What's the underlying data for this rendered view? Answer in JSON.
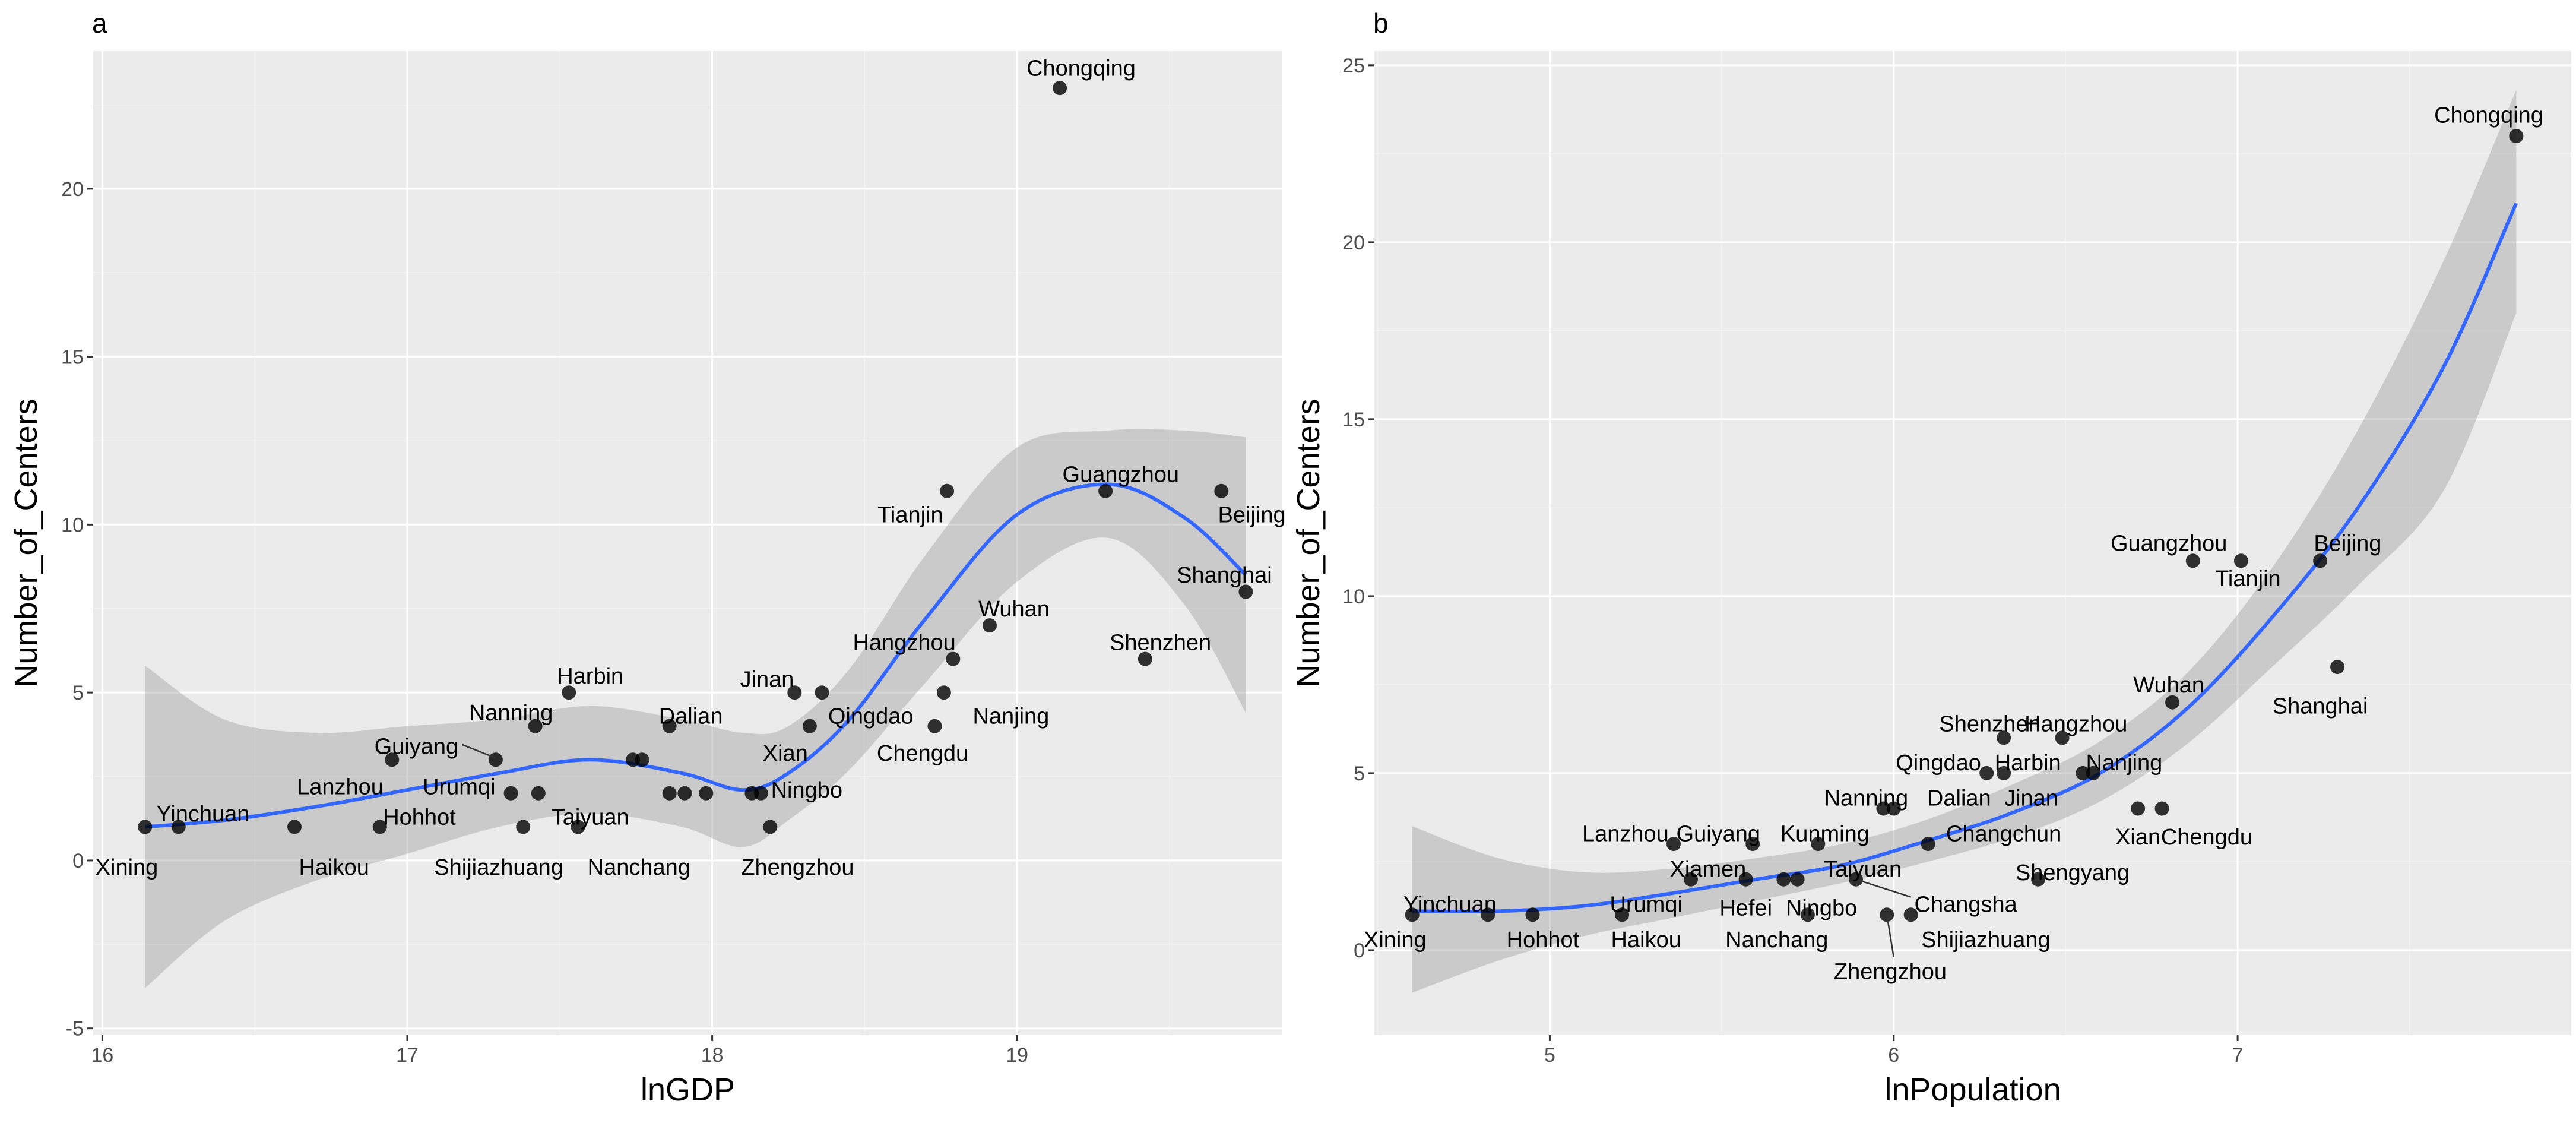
{
  "chart_data": [
    {
      "panel": "a",
      "type": "scatter",
      "xlabel": "lnGDP",
      "ylabel": "Number_of_Centers",
      "xlim": [
        15.97,
        19.87
      ],
      "ylim": [
        -5.2,
        24.1
      ],
      "xticks": [
        16,
        17,
        18,
        19
      ],
      "yticks": [
        -5,
        0,
        5,
        10,
        15,
        20
      ],
      "xticklabels": [
        "16",
        "17",
        "18",
        "19"
      ],
      "yticklabels": [
        "-5",
        "0",
        "5",
        "10",
        "15",
        "20"
      ],
      "grid": true,
      "smooth": {
        "color": "#3366FF",
        "band_color": "#999999",
        "x": [
          16.14,
          16.4,
          16.7,
          17.0,
          17.3,
          17.6,
          17.9,
          18.1,
          18.25,
          18.45,
          18.7,
          19.0,
          19.3,
          19.55,
          19.75
        ],
        "y": [
          1.0,
          1.2,
          1.6,
          2.1,
          2.6,
          3.0,
          2.6,
          2.1,
          2.6,
          4.2,
          7.2,
          10.3,
          11.2,
          10.2,
          8.5
        ],
        "ymin": [
          -3.8,
          -1.8,
          -0.6,
          0.2,
          1.0,
          1.4,
          1.0,
          0.4,
          1.2,
          2.7,
          5.3,
          8.3,
          9.6,
          7.6,
          4.4
        ],
        "ymax": [
          5.8,
          4.2,
          3.8,
          4.0,
          4.2,
          4.6,
          4.2,
          3.8,
          4.0,
          5.7,
          9.1,
          12.3,
          12.8,
          12.8,
          12.6
        ]
      },
      "points": [
        {
          "x": 16.14,
          "y": 1
        },
        {
          "x": 16.25,
          "y": 1
        },
        {
          "x": 16.63,
          "y": 1
        },
        {
          "x": 16.91,
          "y": 1
        },
        {
          "x": 16.95,
          "y": 3
        },
        {
          "x": 17.29,
          "y": 3
        },
        {
          "x": 17.34,
          "y": 2
        },
        {
          "x": 17.38,
          "y": 1
        },
        {
          "x": 17.42,
          "y": 4
        },
        {
          "x": 17.43,
          "y": 2
        },
        {
          "x": 17.53,
          "y": 5
        },
        {
          "x": 17.56,
          "y": 1
        },
        {
          "x": 17.74,
          "y": 3
        },
        {
          "x": 17.77,
          "y": 3
        },
        {
          "x": 17.86,
          "y": 4
        },
        {
          "x": 17.86,
          "y": 2
        },
        {
          "x": 17.91,
          "y": 2
        },
        {
          "x": 17.98,
          "y": 2
        },
        {
          "x": 18.13,
          "y": 2
        },
        {
          "x": 18.16,
          "y": 2
        },
        {
          "x": 18.19,
          "y": 1
        },
        {
          "x": 18.27,
          "y": 5
        },
        {
          "x": 18.32,
          "y": 4
        },
        {
          "x": 18.36,
          "y": 5
        },
        {
          "x": 18.73,
          "y": 4
        },
        {
          "x": 18.76,
          "y": 5
        },
        {
          "x": 18.77,
          "y": 11
        },
        {
          "x": 18.79,
          "y": 6
        },
        {
          "x": 18.91,
          "y": 7
        },
        {
          "x": 19.14,
          "y": 23
        },
        {
          "x": 19.29,
          "y": 11
        },
        {
          "x": 19.42,
          "y": 6
        },
        {
          "x": 19.67,
          "y": 11
        },
        {
          "x": 19.75,
          "y": 8
        }
      ],
      "labels": [
        {
          "text": "Chongqing",
          "x": 19.21,
          "y": 23.6,
          "anchor": "middle",
          "color": "#000000"
        },
        {
          "text": "Tianjin",
          "x": 18.65,
          "y": 10.3,
          "anchor": "middle",
          "color": "#000000"
        },
        {
          "text": "Guangzhou",
          "x": 19.34,
          "y": 11.5,
          "anchor": "middle",
          "color": "#333333"
        },
        {
          "text": "Beijing",
          "x": 19.77,
          "y": 10.3,
          "anchor": "middle",
          "color": "#333333"
        },
        {
          "text": "Shanghai",
          "x": 19.68,
          "y": 8.5,
          "anchor": "middle",
          "color": "#333333"
        },
        {
          "text": "Shenzhen",
          "x": 19.47,
          "y": 6.5,
          "anchor": "middle",
          "color": "#000000"
        },
        {
          "text": "Wuhan",
          "x": 18.99,
          "y": 7.5,
          "anchor": "middle",
          "color": "#333333"
        },
        {
          "text": "Hangzhou",
          "x": 18.63,
          "y": 6.5,
          "anchor": "middle",
          "color": "#333333"
        },
        {
          "text": "Jinan",
          "x": 18.18,
          "y": 5.4,
          "anchor": "middle",
          "color": "#000000"
        },
        {
          "text": "Qingdao",
          "x": 18.52,
          "y": 4.3,
          "anchor": "middle",
          "color": "#333333"
        },
        {
          "text": "Nanjing",
          "x": 18.98,
          "y": 4.3,
          "anchor": "middle",
          "color": "#000000"
        },
        {
          "text": "Chengdu",
          "x": 18.69,
          "y": 3.2,
          "anchor": "middle",
          "color": "#000000"
        },
        {
          "text": "Xian",
          "x": 18.24,
          "y": 3.2,
          "anchor": "middle",
          "color": "#333333"
        },
        {
          "text": "Ningbo",
          "x": 18.31,
          "y": 2.1,
          "anchor": "middle",
          "color": "#333333"
        },
        {
          "text": "Zhengzhou",
          "x": 18.28,
          "y": -0.2,
          "anchor": "middle",
          "color": "#000000"
        },
        {
          "text": "Dalian",
          "x": 17.93,
          "y": 4.3,
          "anchor": "middle",
          "color": "#333333"
        },
        {
          "text": "Harbin",
          "x": 17.6,
          "y": 5.5,
          "anchor": "middle",
          "color": "#000000"
        },
        {
          "text": "Nanning",
          "x": 17.34,
          "y": 4.4,
          "anchor": "middle",
          "color": "#333333"
        },
        {
          "text": "Guiyang",
          "x": 17.03,
          "y": 3.4,
          "anchor": "middle",
          "color": "#333333"
        },
        {
          "text": "Lanzhou",
          "x": 16.78,
          "y": 2.2,
          "anchor": "middle",
          "color": "#333333"
        },
        {
          "text": "Urumqi",
          "x": 17.17,
          "y": 2.2,
          "anchor": "middle",
          "color": "#333333"
        },
        {
          "text": "Hohhot",
          "x": 17.04,
          "y": 1.3,
          "anchor": "middle",
          "color": "#333333"
        },
        {
          "text": "Taiyuan",
          "x": 17.6,
          "y": 1.3,
          "anchor": "middle",
          "color": "#333333"
        },
        {
          "text": "Shijiazhuang",
          "x": 17.3,
          "y": -0.2,
          "anchor": "middle",
          "color": "#000000"
        },
        {
          "text": "Nanchang",
          "x": 17.76,
          "y": -0.2,
          "anchor": "middle",
          "color": "#000000"
        },
        {
          "text": "Yinchuan",
          "x": 16.33,
          "y": 1.4,
          "anchor": "middle",
          "color": "#333333"
        },
        {
          "text": "Haikou",
          "x": 16.76,
          "y": -0.2,
          "anchor": "middle",
          "color": "#000000"
        },
        {
          "text": "Xining",
          "x": 16.08,
          "y": -0.2,
          "anchor": "middle",
          "color": "#000000"
        }
      ],
      "connectors": [
        {
          "x1": 17.18,
          "y1": 3.45,
          "x2": 17.29,
          "y2": 3.05
        }
      ]
    },
    {
      "panel": "b",
      "type": "scatter",
      "xlabel": "lnPopulation",
      "ylabel": "Number_of_Centers",
      "xlim": [
        4.49,
        7.97
      ],
      "ylim": [
        -2.4,
        25.4
      ],
      "xticks": [
        5,
        6,
        7
      ],
      "yticks": [
        0,
        5,
        10,
        15,
        20,
        25
      ],
      "xticklabels": [
        "5",
        "6",
        "7"
      ],
      "yticklabels": [
        "0",
        "5",
        "10",
        "15",
        "20",
        "25"
      ],
      "grid": true,
      "smooth": {
        "color": "#3366FF",
        "band_color": "#999999",
        "x": [
          4.6,
          4.85,
          5.1,
          5.35,
          5.6,
          5.85,
          6.1,
          6.35,
          6.6,
          6.85,
          7.1,
          7.35,
          7.6,
          7.81
        ],
        "y": [
          1.1,
          1.1,
          1.25,
          1.6,
          2.0,
          2.4,
          3.1,
          3.9,
          5.0,
          6.8,
          9.4,
          12.5,
          16.5,
          21.1
        ],
        "ymin": [
          -1.2,
          -0.3,
          0.4,
          0.9,
          1.4,
          1.9,
          2.5,
          3.2,
          4.2,
          5.8,
          8.0,
          10.3,
          13.0,
          18.0
        ],
        "ymax": [
          3.5,
          2.6,
          2.2,
          2.3,
          2.6,
          3.0,
          3.7,
          4.7,
          5.9,
          7.8,
          10.8,
          14.7,
          19.5,
          24.3
        ]
      },
      "points": [
        {
          "x": 4.6,
          "y": 1
        },
        {
          "x": 4.82,
          "y": 1
        },
        {
          "x": 4.95,
          "y": 1
        },
        {
          "x": 5.21,
          "y": 1
        },
        {
          "x": 5.36,
          "y": 3
        },
        {
          "x": 5.41,
          "y": 2
        },
        {
          "x": 5.59,
          "y": 3
        },
        {
          "x": 5.57,
          "y": 2
        },
        {
          "x": 5.68,
          "y": 2
        },
        {
          "x": 5.72,
          "y": 2
        },
        {
          "x": 5.78,
          "y": 3
        },
        {
          "x": 5.75,
          "y": 1
        },
        {
          "x": 5.89,
          "y": 2
        },
        {
          "x": 5.97,
          "y": 4
        },
        {
          "x": 6.0,
          "y": 4
        },
        {
          "x": 5.98,
          "y": 1
        },
        {
          "x": 6.05,
          "y": 1
        },
        {
          "x": 6.1,
          "y": 3
        },
        {
          "x": 6.27,
          "y": 5
        },
        {
          "x": 6.32,
          "y": 6
        },
        {
          "x": 6.32,
          "y": 5
        },
        {
          "x": 6.42,
          "y": 2
        },
        {
          "x": 6.49,
          "y": 6
        },
        {
          "x": 6.55,
          "y": 5
        },
        {
          "x": 6.58,
          "y": 5
        },
        {
          "x": 6.71,
          "y": 4
        },
        {
          "x": 6.78,
          "y": 4
        },
        {
          "x": 6.81,
          "y": 7
        },
        {
          "x": 6.87,
          "y": 11
        },
        {
          "x": 7.01,
          "y": 11
        },
        {
          "x": 7.24,
          "y": 11
        },
        {
          "x": 7.29,
          "y": 8
        },
        {
          "x": 7.81,
          "y": 23
        }
      ],
      "labels": [
        {
          "text": "Chongqing",
          "x": 7.73,
          "y": 23.6,
          "anchor": "middle",
          "color": "#000000"
        },
        {
          "text": "Guangzhou",
          "x": 6.8,
          "y": 11.5,
          "anchor": "middle",
          "color": "#000000"
        },
        {
          "text": "Tianjin",
          "x": 7.03,
          "y": 10.5,
          "anchor": "middle",
          "color": "#333333"
        },
        {
          "text": "Beijing",
          "x": 7.32,
          "y": 11.5,
          "anchor": "middle",
          "color": "#333333"
        },
        {
          "text": "Shanghai",
          "x": 7.24,
          "y": 6.9,
          "anchor": "middle",
          "color": "#000000"
        },
        {
          "text": "Wuhan",
          "x": 6.8,
          "y": 7.5,
          "anchor": "middle",
          "color": "#333333"
        },
        {
          "text": "Shenzhen",
          "x": 6.28,
          "y": 6.4,
          "anchor": "middle",
          "color": "#000000"
        },
        {
          "text": "Hangzhou",
          "x": 6.53,
          "y": 6.4,
          "anchor": "middle",
          "color": "#000000"
        },
        {
          "text": "Qingdao",
          "x": 6.13,
          "y": 5.3,
          "anchor": "middle",
          "color": "#000000"
        },
        {
          "text": "Harbin",
          "x": 6.39,
          "y": 5.3,
          "anchor": "middle",
          "color": "#333333"
        },
        {
          "text": "Nanjing",
          "x": 6.67,
          "y": 5.3,
          "anchor": "middle",
          "color": "#333333"
        },
        {
          "text": "Nanning",
          "x": 5.92,
          "y": 4.3,
          "anchor": "middle",
          "color": "#000000"
        },
        {
          "text": "Dalian",
          "x": 6.19,
          "y": 4.3,
          "anchor": "middle",
          "color": "#000000"
        },
        {
          "text": "Jinan",
          "x": 6.4,
          "y": 4.3,
          "anchor": "middle",
          "color": "#333333"
        },
        {
          "text": "Xian",
          "x": 6.71,
          "y": 3.2,
          "anchor": "middle",
          "color": "#000000"
        },
        {
          "text": "Chengdu",
          "x": 6.91,
          "y": 3.2,
          "anchor": "middle",
          "color": "#000000"
        },
        {
          "text": "Lanzhou",
          "x": 5.22,
          "y": 3.3,
          "anchor": "middle",
          "color": "#000000"
        },
        {
          "text": "Guiyang",
          "x": 5.49,
          "y": 3.3,
          "anchor": "middle",
          "color": "#000000"
        },
        {
          "text": "Kunming",
          "x": 5.8,
          "y": 3.3,
          "anchor": "middle",
          "color": "#000000"
        },
        {
          "text": "Changchun",
          "x": 6.32,
          "y": 3.3,
          "anchor": "middle",
          "color": "#333333"
        },
        {
          "text": "Xiamen",
          "x": 5.46,
          "y": 2.3,
          "anchor": "middle",
          "color": "#333333"
        },
        {
          "text": "Taiyuan",
          "x": 5.91,
          "y": 2.3,
          "anchor": "middle",
          "color": "#333333"
        },
        {
          "text": "Shengyang",
          "x": 6.52,
          "y": 2.2,
          "anchor": "middle",
          "color": "#000000"
        },
        {
          "text": "Urumqi",
          "x": 5.28,
          "y": 1.3,
          "anchor": "middle",
          "color": "#333333"
        },
        {
          "text": "Hefei",
          "x": 5.57,
          "y": 1.2,
          "anchor": "middle",
          "color": "#333333"
        },
        {
          "text": "Ningbo",
          "x": 5.79,
          "y": 1.2,
          "anchor": "middle",
          "color": "#000000"
        },
        {
          "text": "Changsha",
          "x": 6.06,
          "y": 1.3,
          "anchor": "start",
          "color": "#000000"
        },
        {
          "text": "Shijiazhuang",
          "x": 6.08,
          "y": 0.3,
          "anchor": "start",
          "color": "#000000"
        },
        {
          "text": "Zhengzhou",
          "x": 5.99,
          "y": -0.6,
          "anchor": "middle",
          "color": "#000000"
        },
        {
          "text": "Yinchuan",
          "x": 4.71,
          "y": 1.3,
          "anchor": "middle",
          "color": "#333333"
        },
        {
          "text": "Hohhot",
          "x": 4.98,
          "y": 0.3,
          "anchor": "middle",
          "color": "#333333"
        },
        {
          "text": "Haikou",
          "x": 5.28,
          "y": 0.3,
          "anchor": "middle",
          "color": "#000000"
        },
        {
          "text": "Xining",
          "x": 4.55,
          "y": 0.3,
          "anchor": "middle",
          "color": "#000000"
        },
        {
          "text": "Nanchang",
          "x": 5.66,
          "y": 0.3,
          "anchor": "middle",
          "color": "#000000"
        }
      ],
      "connectors": [
        {
          "x1": 5.89,
          "y1": 2.0,
          "x2": 6.05,
          "y2": 1.5
        },
        {
          "x1": 5.98,
          "y1": 1.0,
          "x2": 6.0,
          "y2": -0.2
        }
      ]
    }
  ]
}
